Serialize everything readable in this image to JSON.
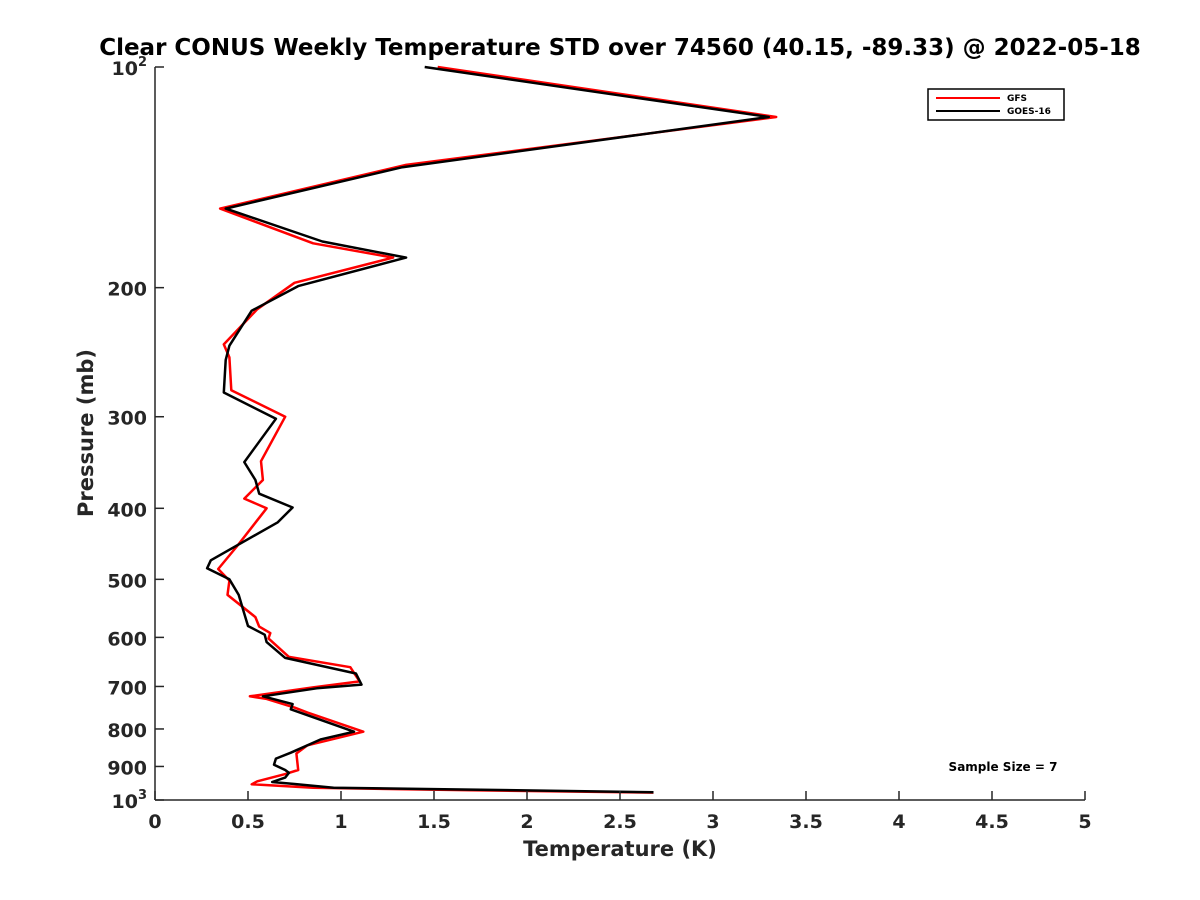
{
  "chart_data": {
    "type": "line",
    "title": "Clear CONUS Weekly Temperature STD over 74560 (40.15, -89.33) @ 2022-05-18",
    "xlabel": "Temperature (K)",
    "ylabel": "Pressure (mb)",
    "xlim": [
      0,
      5
    ],
    "ylim": [
      100,
      1000
    ],
    "y_scale": "log",
    "y_reversed": true,
    "grid": false,
    "legend_position": "top-right",
    "x_ticks": [
      0,
      0.5,
      1,
      1.5,
      2,
      2.5,
      3,
      3.5,
      4,
      4.5,
      5
    ],
    "x_tick_labels": [
      "0",
      "0.5",
      "1",
      "1.5",
      "2",
      "2.5",
      "3",
      "3.5",
      "4",
      "4.5",
      "5"
    ],
    "y_ticks": [
      100,
      200,
      300,
      400,
      500,
      600,
      700,
      800,
      900,
      1000
    ],
    "y_tick_labels": [
      {
        "base": "10",
        "sup": "2"
      },
      {
        "base": "200",
        "sup": ""
      },
      {
        "base": "300",
        "sup": ""
      },
      {
        "base": "400",
        "sup": ""
      },
      {
        "base": "500",
        "sup": ""
      },
      {
        "base": "600",
        "sup": ""
      },
      {
        "base": "700",
        "sup": ""
      },
      {
        "base": "800",
        "sup": ""
      },
      {
        "base": "900",
        "sup": ""
      },
      {
        "base": "10",
        "sup": "3"
      }
    ],
    "annotation": "Sample Size = 7",
    "series": [
      {
        "name": "GFS",
        "color": "#ff0000",
        "points": [
          [
            1.52,
            100
          ],
          [
            3.34,
            117
          ],
          [
            1.35,
            136
          ],
          [
            0.35,
            156
          ],
          [
            0.85,
            174
          ],
          [
            1.28,
            182
          ],
          [
            0.75,
            197
          ],
          [
            0.55,
            214
          ],
          [
            0.37,
            239
          ],
          [
            0.4,
            249
          ],
          [
            0.41,
            276
          ],
          [
            0.7,
            300
          ],
          [
            0.57,
            345
          ],
          [
            0.58,
            366
          ],
          [
            0.48,
            388
          ],
          [
            0.6,
            400
          ],
          [
            0.44,
            451
          ],
          [
            0.34,
            484
          ],
          [
            0.4,
            502
          ],
          [
            0.39,
            525
          ],
          [
            0.54,
            563
          ],
          [
            0.56,
            580
          ],
          [
            0.62,
            592
          ],
          [
            0.61,
            602
          ],
          [
            0.72,
            638
          ],
          [
            1.05,
            659
          ],
          [
            1.1,
            689
          ],
          [
            0.85,
            702
          ],
          [
            0.51,
            722
          ],
          [
            0.6,
            728
          ],
          [
            0.75,
            748
          ],
          [
            0.82,
            760
          ],
          [
            1.12,
            807
          ],
          [
            0.82,
            842
          ],
          [
            0.76,
            864
          ],
          [
            0.77,
            910
          ],
          [
            0.7,
            922
          ],
          [
            0.55,
            943
          ],
          [
            0.52,
            952
          ],
          [
            0.85,
            962
          ],
          [
            1.7,
            970
          ],
          [
            2.68,
            977
          ]
        ]
      },
      {
        "name": "GOES-16",
        "color": "#000000",
        "points": [
          [
            1.45,
            100
          ],
          [
            3.3,
            117
          ],
          [
            1.33,
            137
          ],
          [
            0.38,
            156
          ],
          [
            0.9,
            173
          ],
          [
            1.35,
            182
          ],
          [
            0.77,
            199
          ],
          [
            0.52,
            215
          ],
          [
            0.4,
            240
          ],
          [
            0.38,
            251
          ],
          [
            0.37,
            278
          ],
          [
            0.65,
            302
          ],
          [
            0.48,
            346
          ],
          [
            0.54,
            366
          ],
          [
            0.56,
            382
          ],
          [
            0.74,
            399
          ],
          [
            0.66,
            418
          ],
          [
            0.3,
            471
          ],
          [
            0.28,
            483
          ],
          [
            0.4,
            500
          ],
          [
            0.45,
            525
          ],
          [
            0.48,
            557
          ],
          [
            0.5,
            579
          ],
          [
            0.59,
            595
          ],
          [
            0.6,
            609
          ],
          [
            0.7,
            640
          ],
          [
            1.08,
            672
          ],
          [
            1.11,
            696
          ],
          [
            0.87,
            704
          ],
          [
            0.58,
            722
          ],
          [
            0.74,
            740
          ],
          [
            0.73,
            752
          ],
          [
            1.07,
            807
          ],
          [
            0.89,
            827
          ],
          [
            0.73,
            862
          ],
          [
            0.65,
            878
          ],
          [
            0.64,
            895
          ],
          [
            0.7,
            910
          ],
          [
            0.72,
            918
          ],
          [
            0.7,
            932
          ],
          [
            0.63,
            945
          ],
          [
            0.75,
            951
          ],
          [
            0.96,
            962
          ],
          [
            1.7,
            968
          ],
          [
            2.68,
            976
          ]
        ]
      }
    ]
  }
}
